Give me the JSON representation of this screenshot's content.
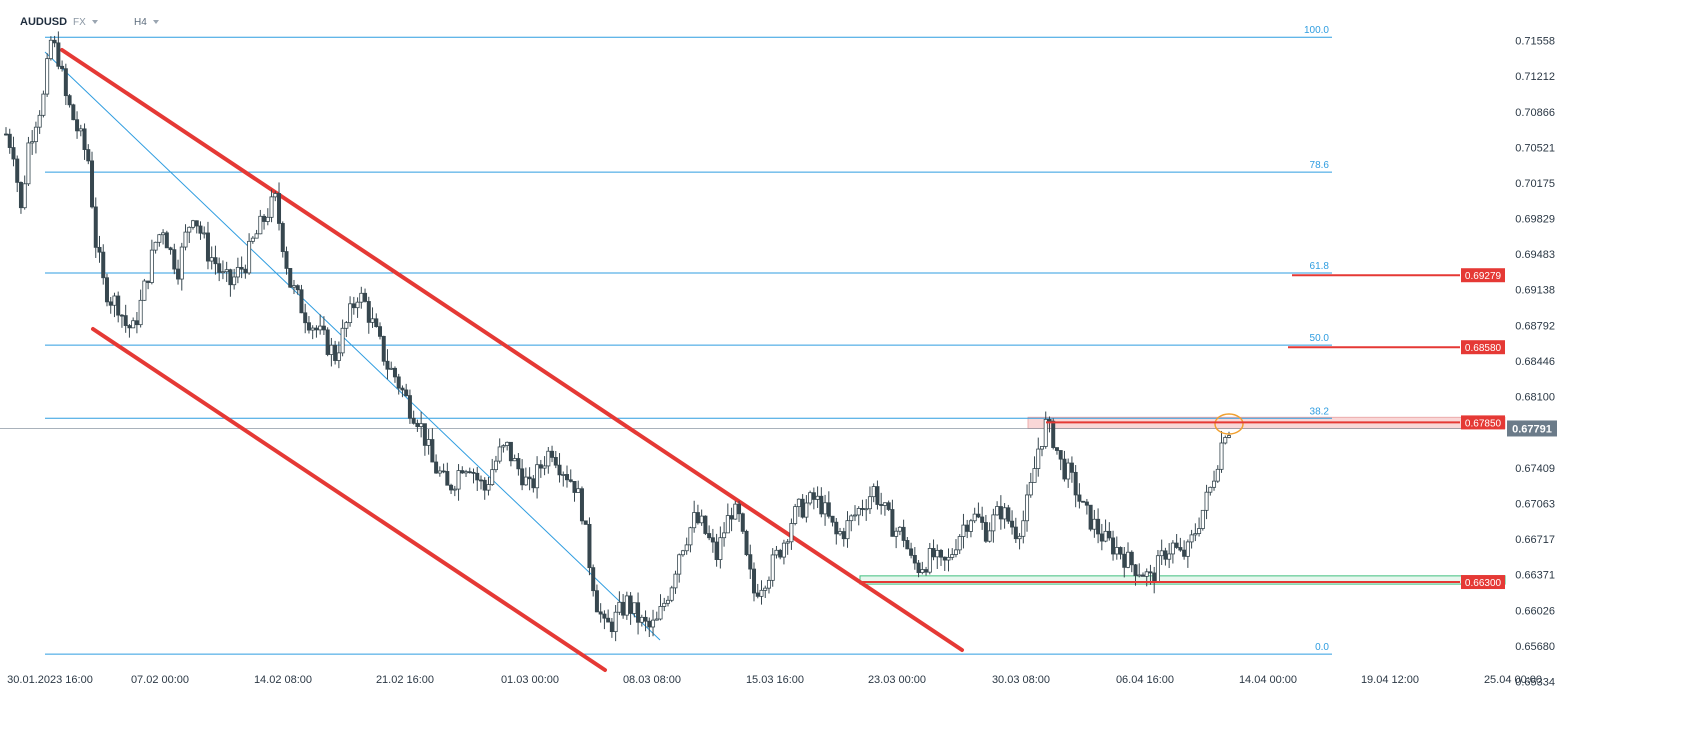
{
  "header": {
    "symbol": "AUDUSD",
    "market": "FX",
    "timeframe": "H4"
  },
  "chart_data": {
    "type": "candlestick",
    "instrument": "AUDUSD",
    "timeframe": "H4",
    "y_ticks": [
      0.71558,
      0.71212,
      0.70866,
      0.70521,
      0.70175,
      0.69829,
      0.69483,
      0.69138,
      0.68792,
      0.68446,
      0.681,
      0.67409,
      0.67063,
      0.66717,
      0.66371,
      0.66026,
      0.6568,
      0.65334
    ],
    "ylim": [
      0.6531,
      0.7166
    ],
    "x_ticks": [
      "30.01.2023  16:00",
      "07.02  00:00",
      "14.02  08:00",
      "21.02  16:00",
      "01.03  00:00",
      "08.03  08:00",
      "15.03  16:00",
      "23.03  00:00",
      "30.03  08:00",
      "06.04  16:00",
      "14.04  00:00",
      "19.04  12:00",
      "25.04  00:00"
    ],
    "current_price": "0.67791",
    "fibonacci_levels": [
      {
        "level": "100.0",
        "price": 0.7159
      },
      {
        "level": "78.6",
        "price": 0.7028
      },
      {
        "level": "61.8",
        "price": 0.693
      },
      {
        "level": "50.0",
        "price": 0.686
      },
      {
        "level": "38.2",
        "price": 0.6789
      },
      {
        "level": "0.0",
        "price": 0.656
      }
    ],
    "key_levels": [
      {
        "label": "0.69279",
        "price": 0.69279
      },
      {
        "label": "0.68580",
        "price": 0.6858
      },
      {
        "label": "0.67850",
        "price": 0.6785
      },
      {
        "label": "0.66300",
        "price": 0.663
      }
    ],
    "channel_upper": [
      [
        "30.01.2023 20:00",
        0.716
      ],
      [
        "24.03 20:00",
        0.6553
      ]
    ],
    "channel_lower": [
      [
        "31.01 12:00",
        0.6876
      ],
      [
        "06.03 12:00",
        0.6525
      ]
    ],
    "trend_line": [
      [
        "30.01.2023 16:00",
        0.716
      ],
      [
        "08.03 16:00",
        0.6565
      ]
    ],
    "resistance_zone": [
      0.6779,
      0.679
    ],
    "support_zone": [
      0.6628,
      0.6636
    ],
    "ohlc_path_approx": [
      0.7065,
      0.705,
      0.699,
      0.7055,
      0.708,
      0.71,
      0.7155,
      0.714,
      0.71,
      0.708,
      0.706,
      0.704,
      0.696,
      0.692,
      0.6905,
      0.69,
      0.688,
      0.6875,
      0.69,
      0.693,
      0.696,
      0.6975,
      0.695,
      0.6935,
      0.6965,
      0.699,
      0.697,
      0.695,
      0.694,
      0.6925,
      0.692,
      0.693,
      0.694,
      0.696,
      0.6975,
      0.699,
      0.7,
      0.696,
      0.692,
      0.6905,
      0.689,
      0.688,
      0.687,
      0.686,
      0.685,
      0.687,
      0.689,
      0.691,
      0.69,
      0.688,
      0.686,
      0.684,
      0.683,
      0.6815,
      0.68,
      0.679,
      0.677,
      0.6745,
      0.6735,
      0.672,
      0.673,
      0.6745,
      0.6745,
      0.673,
      0.672,
      0.674,
      0.6755,
      0.676,
      0.6745,
      0.6735,
      0.672,
      0.6735,
      0.675,
      0.676,
      0.6745,
      0.6735,
      0.6725,
      0.67,
      0.665,
      0.661,
      0.6585,
      0.659,
      0.66,
      0.661,
      0.66,
      0.659,
      0.6585,
      0.659,
      0.661,
      0.663,
      0.666,
      0.6675,
      0.669,
      0.6685,
      0.667,
      0.6655,
      0.668,
      0.67,
      0.669,
      0.665,
      0.662,
      0.663,
      0.664,
      0.6655,
      0.667,
      0.669,
      0.67,
      0.6705,
      0.671,
      0.6705,
      0.669,
      0.6675,
      0.668,
      0.669,
      0.67,
      0.671,
      0.672,
      0.6705,
      0.669,
      0.668,
      0.6675,
      0.665,
      0.6645,
      0.665,
      0.6655,
      0.6645,
      0.665,
      0.667,
      0.6685,
      0.6695,
      0.669,
      0.668,
      0.669,
      0.67,
      0.669,
      0.668,
      0.669,
      0.672,
      0.676,
      0.6782,
      0.677,
      0.6745,
      0.6735,
      0.672,
      0.67,
      0.669,
      0.668,
      0.667,
      0.6665,
      0.666,
      0.665,
      0.6645,
      0.664,
      0.6632,
      0.6645,
      0.666,
      0.6665,
      0.6655,
      0.666,
      0.668,
      0.67,
      0.672,
      0.675,
      0.6779
    ]
  },
  "labels": {
    "price_tag": "0.67791"
  },
  "colors": {
    "fib": "#2f9de0",
    "channel": "#e53935",
    "candle_up": "#ffffff",
    "candle_down": "#37474f",
    "level_tag": "#e53935",
    "price_tag": "#6b7b89",
    "support_zone": "#3fbf7f",
    "resistance_zone": "#f4b6b6",
    "highlight_circle": "#f0a030"
  }
}
